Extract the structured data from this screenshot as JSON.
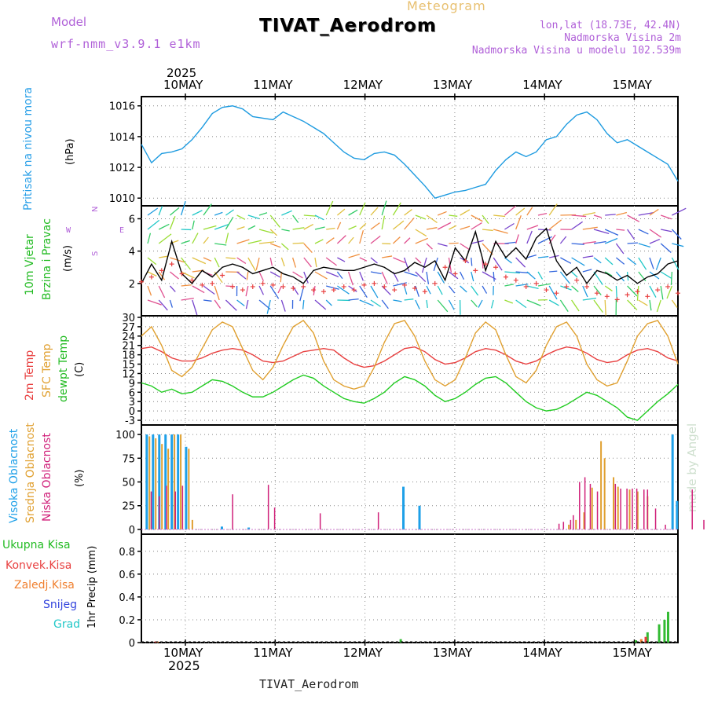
{
  "header": {
    "model_label": "Model",
    "model_name": "wrf-nmm_v3.9.1 e1km",
    "meteogram": "Meteogram",
    "station": "TIVAT_Aerodrom",
    "lonlat": "lon,lat (18.73E, 42.4N)",
    "elev": "Nadmorska Visina 2m",
    "model_elev": "Nadmorska Visina u modelu 102.539m"
  },
  "footer": {
    "station": "TIVAT_Aerodrom"
  },
  "watermark": "made by Angel",
  "time_axis": {
    "year": "2025",
    "day_labels": [
      "10MAY",
      "11MAY",
      "12MAY",
      "13MAY",
      "14MAY",
      "15MAY"
    ]
  },
  "panel_labels": {
    "pressure": {
      "name": "Pritisak na nivou mora",
      "unit": "(hPa)"
    },
    "wind": {
      "name1": "10m Vjetar",
      "name2": "Brzina i Pravac",
      "unit": "(m/s)",
      "compass_n": "N",
      "compass_s": "S",
      "compass_w": "W",
      "compass_e": "E"
    },
    "temp": {
      "t2m": "2m Temp",
      "sfc": "SFC Temp",
      "dew": "dewpt Temp",
      "unit": "(C)"
    },
    "cloud": {
      "high": "Visoka Oblacnost",
      "mid": "Srednja Oblacnost",
      "low": "Niska Oblacnost",
      "unit": "(%)"
    },
    "precip": {
      "total": "Ukupna Kisa",
      "conv": "Konvek.Kisa",
      "frozen": "Zaledj.Kisa",
      "snow": "Snijeg",
      "grad": "Grad",
      "unit": "1hr Precip (mm)"
    }
  },
  "colors": {
    "pressure": "#1e9be0",
    "t2m": "#e84040",
    "sfc": "#e0a030",
    "dew": "#22cc22",
    "cloud_high": "#1ea0e8",
    "cloud_mid": "#e0a030",
    "cloud_low": "#d0207a",
    "precip_total": "#33bb33",
    "precip_conv": "#e84040",
    "precip_frozen": "#f08030",
    "precip_snow": "#3344dd",
    "precip_grad": "#22c8c8"
  },
  "chart_data": [
    {
      "type": "line",
      "panel": "pressure",
      "ylim": [
        1009.5,
        1016.6
      ],
      "yticks": [
        "1010",
        "1012",
        "1014",
        "1016"
      ],
      "grid": true,
      "series": [
        {
          "values": [
            1013.5,
            1012.3,
            1012.9,
            1013.0,
            1013.2,
            1013.8,
            1014.6,
            1015.5,
            1015.9,
            1016.0,
            1015.8,
            1015.3,
            1015.2,
            1015.1,
            1015.6,
            1015.3,
            1015.0,
            1014.6,
            1014.2,
            1013.6,
            1013.0,
            1012.6,
            1012.5,
            1012.9,
            1013.0,
            1012.8,
            1012.2,
            1011.5,
            1010.8,
            1010.0,
            1010.2,
            1010.4,
            1010.5,
            1010.7,
            1010.9,
            1011.8,
            1012.5,
            1013.0,
            1012.7,
            1013.0,
            1013.8,
            1014.0,
            1014.8,
            1015.4,
            1015.6,
            1015.1,
            1014.2,
            1013.6,
            1013.8,
            1013.4,
            1013.0,
            1012.6,
            1012.2,
            1011.1
          ]
        }
      ]
    },
    {
      "type": "line",
      "panel": "wind",
      "ylim": [
        0,
        6.8
      ],
      "yticks": [
        "2",
        "4",
        "6"
      ],
      "grid": true,
      "series": [
        {
          "values": [
            2.0,
            3.2,
            2.2,
            4.6,
            2.6,
            2.0,
            2.8,
            2.4,
            3.0,
            3.2,
            3.0,
            2.6,
            2.8,
            3.0,
            2.6,
            2.4,
            2.0,
            2.8,
            3.0,
            2.9,
            2.8,
            2.8,
            3.0,
            3.2,
            3.0,
            2.6,
            2.8,
            3.3,
            3.0,
            3.4,
            2.2,
            4.2,
            3.4,
            5.2,
            2.8,
            4.6,
            3.6,
            4.2,
            3.5,
            4.8,
            5.4,
            3.4,
            2.5,
            3.0,
            2.0,
            2.8,
            2.6,
            2.2,
            2.5,
            2.0,
            2.4,
            2.6,
            3.2,
            3.4
          ]
        }
      ],
      "markers": [
        2.1,
        2.4,
        2.8,
        3.2,
        2.6,
        2.2,
        1.9,
        2.0,
        2.5,
        1.8,
        1.6,
        1.8,
        2.0,
        1.9,
        1.8,
        1.7,
        1.8,
        1.6,
        1.5,
        1.6,
        1.8,
        1.6,
        1.9,
        2.0,
        1.8,
        1.6,
        1.9,
        1.7,
        1.5,
        2.0,
        3.0,
        2.6,
        3.4,
        2.8,
        3.2,
        3.0,
        2.4,
        2.2,
        1.8,
        2.0,
        1.6,
        1.4,
        1.8,
        2.2,
        1.8,
        1.4,
        1.2,
        1.0,
        1.3,
        1.5,
        1.2,
        1.6,
        1.8,
        1.4
      ]
    },
    {
      "type": "line",
      "panel": "temperature",
      "ylim": [
        -4.5,
        30.5
      ],
      "yticks": [
        "-3",
        "0",
        "3",
        "6",
        "9",
        "12",
        "15",
        "18",
        "21",
        "24",
        "27",
        "30"
      ],
      "grid": true,
      "series": [
        {
          "name": "2m Temp",
          "values": [
            20.0,
            20.5,
            19.0,
            17.0,
            16.0,
            16.0,
            17.0,
            18.5,
            19.5,
            20.0,
            19.5,
            18.0,
            16.0,
            15.5,
            16.0,
            17.5,
            19.0,
            19.5,
            20.0,
            19.5,
            17.0,
            15.0,
            14.0,
            14.5,
            16.0,
            18.0,
            20.0,
            20.5,
            19.0,
            16.5,
            15.0,
            15.5,
            17.0,
            19.0,
            20.0,
            19.5,
            18.0,
            16.0,
            15.0,
            16.0,
            18.0,
            19.5,
            20.5,
            20.0,
            18.5,
            16.5,
            15.5,
            16.0,
            18.0,
            19.5,
            20.0,
            19.0,
            17.0,
            16.0
          ]
        },
        {
          "name": "SFC Temp",
          "values": [
            24.0,
            27.0,
            21.0,
            13.0,
            11.0,
            14.0,
            20.0,
            26.0,
            28.5,
            27.0,
            20.0,
            13.0,
            10.0,
            14.0,
            21.0,
            27.0,
            29.0,
            25.0,
            16.0,
            10.0,
            8.0,
            7.0,
            8.0,
            14.0,
            22.0,
            28.0,
            29.0,
            24.0,
            16.0,
            10.0,
            8.0,
            10.0,
            17.0,
            25.0,
            28.5,
            26.0,
            18.0,
            11.0,
            9.0,
            13.0,
            21.0,
            27.0,
            28.5,
            24.0,
            15.0,
            10.0,
            8.0,
            9.0,
            16.0,
            24.0,
            28.0,
            29.0,
            24.0,
            15.0
          ]
        },
        {
          "name": "dewpt Temp",
          "values": [
            9.0,
            8.0,
            6.0,
            7.0,
            5.5,
            6.0,
            8.0,
            10.0,
            9.5,
            8.0,
            6.0,
            4.5,
            4.5,
            6.0,
            8.0,
            10.0,
            11.5,
            10.5,
            8.0,
            6.0,
            4.0,
            3.0,
            2.5,
            4.0,
            6.0,
            9.0,
            11.0,
            10.0,
            8.0,
            5.0,
            3.0,
            4.0,
            6.0,
            8.5,
            10.5,
            11.0,
            9.0,
            6.0,
            3.0,
            1.0,
            0.0,
            0.5,
            2.0,
            4.0,
            6.0,
            5.0,
            3.0,
            1.0,
            -2.0,
            -3.0,
            0.0,
            3.0,
            5.5,
            8.5
          ]
        }
      ]
    },
    {
      "type": "bar",
      "panel": "cloud",
      "ylim": [
        -5,
        110
      ],
      "yticks": [
        "0",
        "25",
        "50",
        "75",
        "100"
      ],
      "grid": true,
      "series": [
        {
          "name": "Visoka Oblacnost",
          "values": [
            [
              0.6,
              100
            ],
            [
              1.3,
              100
            ],
            [
              2.0,
              100
            ],
            [
              2.7,
              100
            ],
            [
              3.4,
              100
            ],
            [
              4.1,
              100
            ],
            [
              5.0,
              87
            ],
            [
              9.0,
              3
            ],
            [
              12.0,
              2
            ],
            [
              29.3,
              45
            ],
            [
              31.1,
              25
            ],
            [
              59.4,
              100
            ],
            [
              59.9,
              30
            ]
          ]
        },
        {
          "name": "Srednja Oblacnost",
          "values": [
            [
              0.9,
              98
            ],
            [
              1.6,
              96
            ],
            [
              2.3,
              90
            ],
            [
              3.0,
              85
            ],
            [
              3.7,
              100
            ],
            [
              4.4,
              100
            ],
            [
              5.3,
              85
            ],
            [
              5.7,
              10
            ],
            [
              47.8,
              5
            ],
            [
              48.6,
              10
            ],
            [
              49.5,
              18
            ],
            [
              50.4,
              44
            ],
            [
              51.4,
              93
            ],
            [
              51.8,
              75
            ],
            [
              52.8,
              55
            ],
            [
              53.3,
              45
            ],
            [
              54.6,
              42
            ],
            [
              55.5,
              40
            ],
            [
              56.6,
              35
            ]
          ]
        },
        {
          "name": "Niska Oblacnost",
          "values": [
            [
              1.1,
              40
            ],
            [
              2.0,
              35
            ],
            [
              2.8,
              46
            ],
            [
              3.8,
              40
            ],
            [
              4.6,
              46
            ],
            [
              10.2,
              37
            ],
            [
              14.2,
              47
            ],
            [
              14.9,
              23
            ],
            [
              20.0,
              17
            ],
            [
              26.5,
              18
            ],
            [
              46.7,
              6
            ],
            [
              47.2,
              8
            ],
            [
              48.0,
              10
            ],
            [
              48.3,
              15
            ],
            [
              49.0,
              50
            ],
            [
              49.6,
              55
            ],
            [
              50.2,
              48
            ],
            [
              51.0,
              40
            ],
            [
              53.0,
              48
            ],
            [
              53.6,
              43
            ],
            [
              54.3,
              43
            ],
            [
              54.9,
              43
            ],
            [
              55.4,
              43
            ],
            [
              56.2,
              42
            ],
            [
              56.6,
              42
            ],
            [
              57.5,
              22
            ],
            [
              58.6,
              5
            ],
            [
              61.6,
              42
            ],
            [
              62.9,
              10
            ]
          ]
        }
      ]
    },
    {
      "type": "bar",
      "panel": "precip",
      "ylim": [
        0,
        0.95
      ],
      "yticks": [
        "0",
        "0.2",
        "0.4",
        "0.6",
        "0.8"
      ],
      "grid": true,
      "series": [
        {
          "name": "Ukupna Kisa",
          "values": [
            [
              29.0,
              0.03
            ],
            [
              55.3,
              0.02
            ],
            [
              56.6,
              0.09
            ],
            [
              57.9,
              0.16
            ],
            [
              58.5,
              0.2
            ],
            [
              58.9,
              0.27
            ]
          ]
        },
        {
          "name": "Konvek.Kisa",
          "values": [
            [
              1.6,
              0.01
            ],
            [
              56.4,
              0.05
            ]
          ]
        },
        {
          "name": "Zaledj.Kisa",
          "values": [
            [
              1.8,
              0.01
            ],
            [
              55.9,
              0.03
            ]
          ]
        }
      ]
    }
  ]
}
